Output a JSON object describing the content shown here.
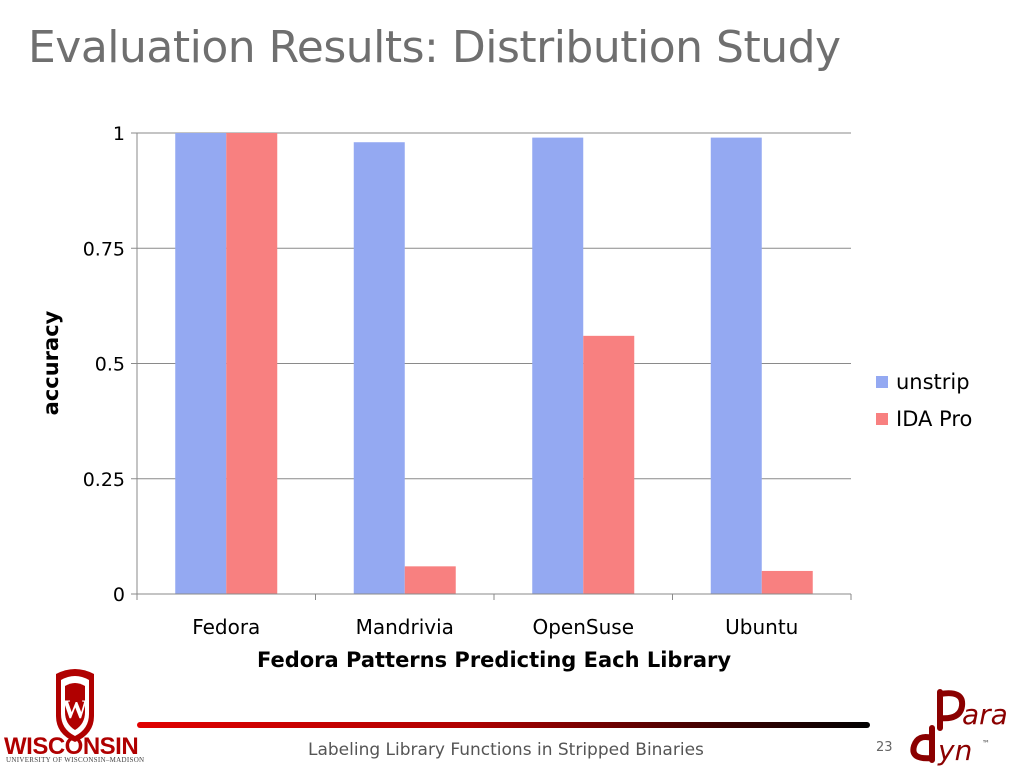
{
  "slide": {
    "title": "Evaluation Results: Distribution Study",
    "footer_text": "Labeling Library Functions in Stripped Binaries",
    "page_number": "23"
  },
  "branding": {
    "left_logo": {
      "name": "WISCONSIN",
      "subtitle": "UNIVERSITY OF WISCONSIN–MADISON",
      "crest_letter": "W",
      "color": "#b00000"
    },
    "right_logo": {
      "word_top": "ara",
      "word_bottom": "yn",
      "trademark": "™",
      "color": "#8b0000"
    }
  },
  "chart_data": {
    "type": "bar",
    "title": "",
    "xlabel": "Fedora Patterns Predicting Each Library",
    "ylabel": "accuracy",
    "categories": [
      "Fedora",
      "Mandrivia",
      "OpenSuse",
      "Ubuntu"
    ],
    "series": [
      {
        "name": "unstrip",
        "color": "#94a9f2",
        "values": [
          1.0,
          0.98,
          0.99,
          0.99
        ]
      },
      {
        "name": "IDA Pro",
        "color": "#f88080",
        "values": [
          1.0,
          0.06,
          0.56,
          0.05
        ]
      }
    ],
    "ylim": [
      0,
      1
    ],
    "yticks": [
      {
        "value": 0,
        "label": "0"
      },
      {
        "value": 0.25,
        "label": "0.25"
      },
      {
        "value": 0.5,
        "label": "0.5"
      },
      {
        "value": 0.75,
        "label": "0.75"
      },
      {
        "value": 1,
        "label": "1"
      }
    ],
    "grid": true,
    "legend_position": "right"
  }
}
